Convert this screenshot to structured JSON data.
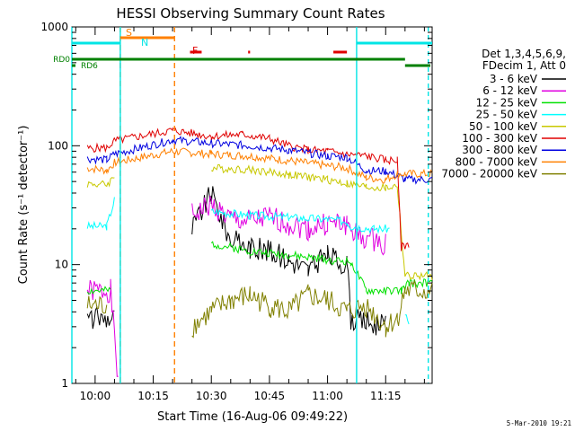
{
  "chart_data": {
    "type": "line",
    "title": "HESSI Observing Summary Count Rates",
    "xlabel": "Start Time (16-Aug-06 09:49:22)",
    "ylabel": "Count Rate (s⁻¹ detector⁻¹)",
    "yscale": "log",
    "ylim": [
      1,
      1000
    ],
    "xlim_minutes": [
      -6,
      87
    ],
    "x_ticks": [
      {
        "label": "10:00",
        "minute": 0
      },
      {
        "label": "10:15",
        "minute": 15
      },
      {
        "label": "10:30",
        "minute": 30
      },
      {
        "label": "10:45",
        "minute": 45
      },
      {
        "label": "11:00",
        "minute": 60
      },
      {
        "label": "11:15",
        "minute": 75
      }
    ],
    "y_ticks": [
      {
        "label": "1",
        "value": 1
      },
      {
        "label": "10",
        "value": 10
      },
      {
        "label": "100",
        "value": 100
      },
      {
        "label": "1000",
        "value": 1000
      }
    ],
    "legend": {
      "placement": "right",
      "header": [
        "Det 1,3,4,5,6,9,",
        "FDecim 1, Att 0"
      ]
    },
    "flags": [
      {
        "label": "S",
        "color": "#ff8000"
      },
      {
        "label": "N",
        "color": "#00e5e5"
      },
      {
        "label": "F",
        "color": "#e00000"
      },
      {
        "label": "RD0",
        "color": "#008000"
      },
      {
        "label": "RD6",
        "color": "#008000"
      }
    ],
    "series": [
      {
        "name": "3 - 6 keV",
        "color": "#000000",
        "x": [
          -6,
          -2,
          5,
          7,
          20,
          25,
          30,
          35,
          40,
          45,
          50,
          55,
          60,
          65,
          66,
          70,
          75,
          78
        ],
        "values": [
          null,
          3.5,
          3.6,
          null,
          null,
          20,
          40,
          16,
          14,
          13,
          11,
          9,
          12,
          10,
          3.5,
          3.3,
          3.0,
          null
        ]
      },
      {
        "name": "6 - 12 keV",
        "color": "#e000e0",
        "x": [
          -6,
          -2,
          4,
          6,
          7,
          20,
          25,
          30,
          35,
          40,
          45,
          50,
          55,
          60,
          65,
          68,
          72,
          75,
          78
        ],
        "values": [
          null,
          6,
          6,
          1,
          null,
          null,
          26,
          32,
          24,
          23,
          25,
          22,
          20,
          22,
          22,
          17,
          16,
          15,
          null
        ]
      },
      {
        "name": "12 - 25 keV",
        "color": "#00e000",
        "x": [
          -6,
          -2,
          4,
          6,
          20,
          30,
          40,
          50,
          60,
          66,
          70,
          75,
          79,
          81,
          87
        ],
        "values": [
          null,
          6,
          6,
          null,
          null,
          15,
          13,
          12,
          11,
          10.5,
          6,
          6,
          6,
          7,
          7
        ]
      },
      {
        "name": "25 - 50 keV",
        "color": "#00ffff",
        "x": [
          -6,
          -2,
          3,
          5,
          7,
          20,
          30,
          40,
          50,
          60,
          65,
          66,
          72,
          76,
          78,
          80,
          81,
          87
        ],
        "values": [
          null,
          21,
          21,
          35,
          null,
          null,
          28,
          26,
          25,
          24,
          23,
          21,
          20,
          20,
          null,
          4,
          3,
          null
        ]
      },
      {
        "name": "50 - 100 keV",
        "color": "#c8c800",
        "x": [
          -6,
          -2,
          3,
          5,
          20,
          30,
          40,
          50,
          60,
          65,
          70,
          75,
          78,
          80,
          87
        ],
        "values": [
          null,
          48,
          47,
          55,
          null,
          65,
          63,
          57,
          52,
          48,
          45,
          44,
          46,
          8,
          8
        ]
      },
      {
        "name": "100 - 300 keV",
        "color": "#e00000",
        "x": [
          -6,
          -2,
          3,
          5,
          20,
          30,
          38,
          45,
          50,
          55,
          60,
          65,
          70,
          75,
          78,
          79,
          81,
          87
        ],
        "values": [
          null,
          95,
          96,
          110,
          135,
          120,
          125,
          115,
          100,
          92,
          90,
          85,
          82,
          76,
          75,
          14,
          15,
          null
        ]
      },
      {
        "name": "300 - 800 keV",
        "color": "#0000e0",
        "x": [
          -6,
          -2,
          3,
          5,
          20,
          30,
          40,
          50,
          60,
          65,
          70,
          75,
          78,
          80,
          87
        ],
        "values": [
          null,
          78,
          76,
          85,
          112,
          105,
          100,
          92,
          82,
          80,
          62,
          61,
          56,
          52,
          52
        ]
      },
      {
        "name": "800 - 7000 keV",
        "color": "#ff8000",
        "x": [
          -6,
          -2,
          3,
          5,
          20,
          30,
          40,
          50,
          60,
          65,
          70,
          75,
          78,
          80,
          87
        ],
        "values": [
          null,
          65,
          62,
          72,
          90,
          85,
          82,
          75,
          68,
          65,
          54,
          52,
          58,
          58,
          58
        ]
      },
      {
        "name": "7000 - 20000 keV",
        "color": "#808000",
        "x": [
          -6,
          -2,
          3,
          5,
          20,
          25,
          30,
          35,
          40,
          45,
          50,
          55,
          60,
          65,
          70,
          75,
          78,
          80,
          87
        ],
        "values": [
          null,
          4.5,
          4.5,
          null,
          null,
          3,
          4,
          5,
          5.5,
          4.5,
          4,
          5.5,
          5,
          4,
          4.5,
          3,
          3.5,
          6,
          6
        ]
      }
    ]
  },
  "footer": {
    "date_stamp": "5-Mar-2010 19:21"
  }
}
